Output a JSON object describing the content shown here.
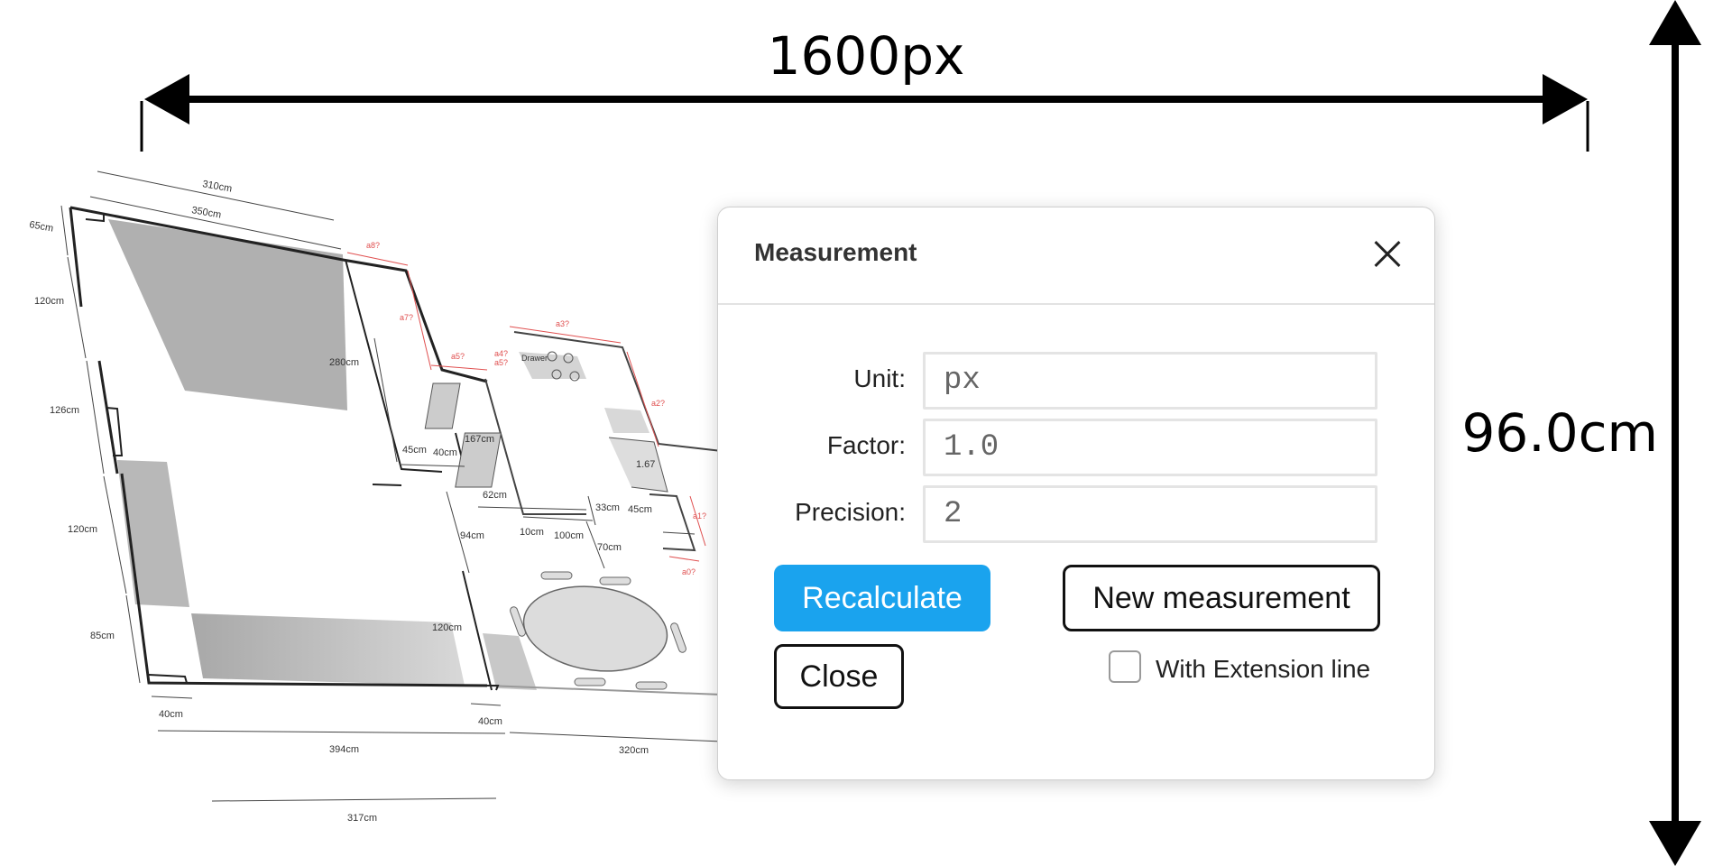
{
  "overlay": {
    "width_label": "1600px",
    "height_label": "96.0cm"
  },
  "floorplan": {
    "dims": [
      "310cm",
      "350cm",
      "65cm",
      "120cm",
      "126cm",
      "120cm",
      "85cm",
      "40cm",
      "394cm",
      "317cm",
      "280cm",
      "45cm",
      "40cm",
      "167cm",
      "62cm",
      "10cm",
      "100cm",
      "33cm",
      "45cm",
      "94cm",
      "120cm",
      "70cm",
      "40cm",
      "320cm",
      "1.67"
    ],
    "red_dims": [
      "a8?",
      "a7?",
      "a5?",
      "a4?",
      "a5?",
      "a3?",
      "a2?",
      "a1?",
      "a0?"
    ],
    "drawer_label": "Drawer"
  },
  "dialog": {
    "title": "Measurement",
    "fields": {
      "unit": {
        "label": "Unit:",
        "value": "px"
      },
      "factor": {
        "label": "Factor:",
        "value": "1.0"
      },
      "precision": {
        "label": "Precision:",
        "value": "2"
      }
    },
    "buttons": {
      "recalculate": "Recalculate",
      "new_measurement": "New measurement",
      "close": "Close"
    },
    "extension_label": "With Extension line",
    "extension_checked": false
  },
  "colors": {
    "primary": "#1aa3ee",
    "dim_red": "#e05050"
  }
}
